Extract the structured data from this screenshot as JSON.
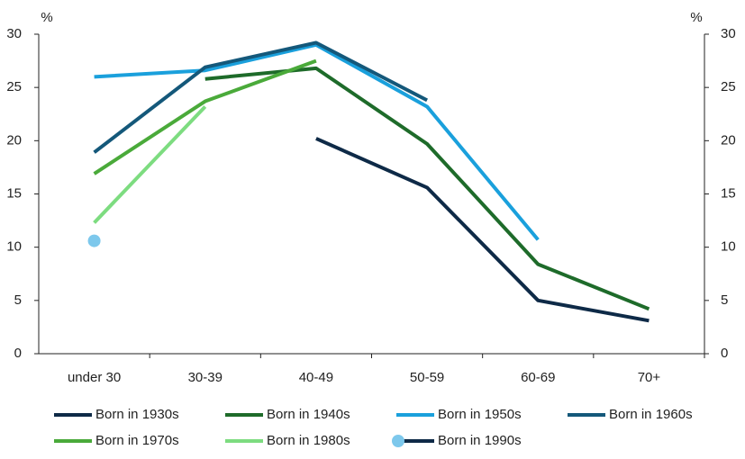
{
  "chart_data": {
    "type": "line",
    "y_label": "%",
    "y2_label": "%",
    "categories": [
      "under 30",
      "30-39",
      "40-49",
      "50-59",
      "60-69",
      "70+"
    ],
    "ylim": [
      0,
      30
    ],
    "yticks": [
      0,
      5,
      10,
      15,
      20,
      25,
      30
    ],
    "y2lim": [
      0,
      30
    ],
    "y2ticks": [
      0,
      5,
      10,
      15,
      20,
      25,
      30
    ],
    "grid": false,
    "legend": "bottom",
    "series": [
      {
        "name": "Born in 1930s",
        "color": "#0e2a47",
        "values": [
          null,
          null,
          20.2,
          15.6,
          5.0,
          3.1
        ]
      },
      {
        "name": "Born in 1940s",
        "color": "#1e6b2a",
        "values": [
          null,
          25.8,
          26.8,
          19.7,
          8.4,
          4.2
        ]
      },
      {
        "name": "Born in 1950s",
        "color": "#1aa0dc",
        "values": [
          26.0,
          26.6,
          29.0,
          23.2,
          10.7,
          null
        ]
      },
      {
        "name": "Born in 1960s",
        "color": "#14587a",
        "values": [
          18.9,
          26.9,
          29.2,
          23.8,
          null,
          null
        ]
      },
      {
        "name": "Born in 1970s",
        "color": "#4aaa3a",
        "values": [
          16.9,
          23.7,
          27.5,
          null,
          null,
          null
        ]
      },
      {
        "name": "Born in 1980s",
        "color": "#7ddc80",
        "values": [
          12.3,
          23.2,
          null,
          null,
          null,
          null
        ]
      },
      {
        "name": "Born in 1990s",
        "color": "#7dc8ec",
        "legend_line_color": "#0e2a47",
        "values": [
          10.6,
          null,
          null,
          null,
          null,
          null
        ]
      }
    ]
  }
}
